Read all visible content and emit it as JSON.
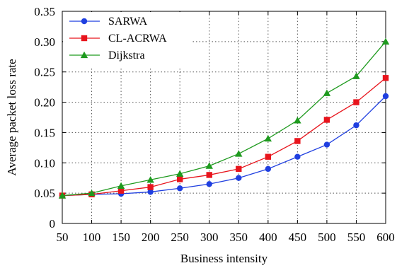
{
  "chart_data": {
    "type": "line",
    "title": "",
    "xlabel": "Business intensity",
    "ylabel": "Average packet loss rate",
    "x": [
      50,
      100,
      150,
      200,
      250,
      300,
      350,
      400,
      450,
      500,
      550,
      600
    ],
    "xlim": [
      50,
      600
    ],
    "ylim": [
      0,
      0.35
    ],
    "xticks": [
      "50",
      "100",
      "150",
      "200",
      "250",
      "300",
      "350",
      "400",
      "450",
      "500",
      "550",
      "600"
    ],
    "yticks": [
      {
        "value": 0,
        "label": "0"
      },
      {
        "value": 0.05,
        "label": "0.05"
      },
      {
        "value": 0.1,
        "label": "0.10"
      },
      {
        "value": 0.15,
        "label": "0.15"
      },
      {
        "value": 0.2,
        "label": "0.20"
      },
      {
        "value": 0.25,
        "label": "0.25"
      },
      {
        "value": 0.3,
        "label": "0.30"
      },
      {
        "value": 0.35,
        "label": "0.35"
      }
    ],
    "grid": true,
    "legend_position": "top-left",
    "series": [
      {
        "name": "SARWA",
        "color": "#1f3fe0",
        "marker": "circle",
        "values": [
          0.046,
          0.048,
          0.049,
          0.052,
          0.058,
          0.065,
          0.075,
          0.09,
          0.11,
          0.13,
          0.162,
          0.21
        ]
      },
      {
        "name": "CL-ACRWA",
        "color": "#e8141c",
        "marker": "square",
        "values": [
          0.046,
          0.048,
          0.054,
          0.06,
          0.073,
          0.08,
          0.09,
          0.11,
          0.136,
          0.171,
          0.2,
          0.24
        ]
      },
      {
        "name": "Dijkstra",
        "color": "#1e9a1e",
        "marker": "triangle",
        "values": [
          0.046,
          0.05,
          0.062,
          0.072,
          0.082,
          0.095,
          0.115,
          0.14,
          0.17,
          0.215,
          0.243,
          0.3
        ]
      }
    ]
  }
}
